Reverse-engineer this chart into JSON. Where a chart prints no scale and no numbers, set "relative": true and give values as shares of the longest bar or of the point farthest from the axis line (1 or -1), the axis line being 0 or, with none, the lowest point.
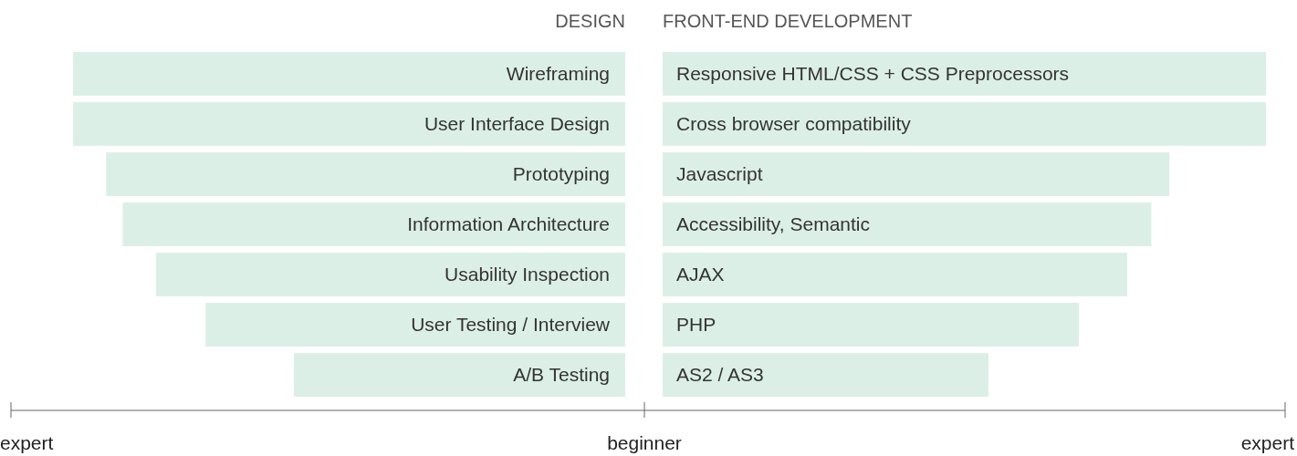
{
  "chart_data": [
    {
      "type": "bar",
      "orientation": "horizontal",
      "relative": true,
      "title": "DESIGN",
      "color": "#dcefe6",
      "categories": [
        "Wireframing",
        "User Interface Design",
        "Prototyping",
        "Information Architecture",
        "Usability Inspection",
        "User Testing / Interview",
        "A/B Testing"
      ],
      "values": [
        1,
        1,
        0.94,
        0.91,
        0.85,
        0.76,
        0.6
      ],
      "annotations": [
        "expert",
        "beginner"
      ]
    },
    {
      "type": "bar",
      "orientation": "horizontal",
      "relative": true,
      "title": "FRONT-END DEVELOPMENT",
      "color": "#dcefe6",
      "categories": [
        "Responsive HTML/CSS + CSS Preprocessors",
        "Cross browser compatibility",
        "Javascript",
        "Accessibility, Semantic",
        "AJAX",
        "PHP",
        "AS2 / AS3"
      ],
      "values": [
        1,
        1,
        0.84,
        0.81,
        0.77,
        0.69,
        0.54
      ],
      "annotations": [
        "expert"
      ]
    }
  ]
}
